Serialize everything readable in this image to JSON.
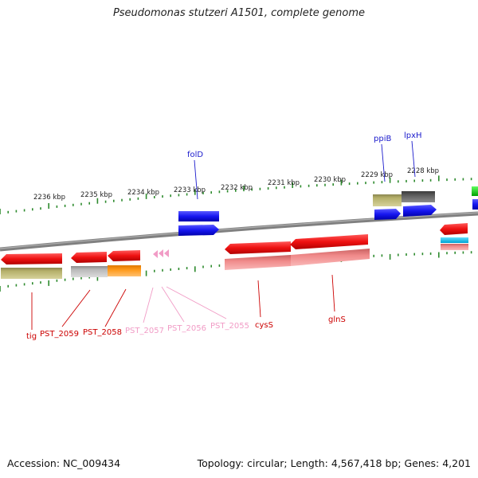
{
  "title": "Pseudomonas stutzeri A1501, complete genome",
  "footer": {
    "accession": "Accession: NC_009434",
    "summary": "Topology: circular; Length: 4,567,418 bp; Genes: 4,201"
  },
  "ruler_labels": [
    "2236 kbp",
    "2235 kbp",
    "2234 kbp",
    "2233 kbp",
    "2232 kbp",
    "2231 kbp",
    "2230 kbp",
    "2229 kbp",
    "2228 kbp"
  ],
  "gene_labels": [
    {
      "text": "tig",
      "color": "#cc0000"
    },
    {
      "text": "PST_2059",
      "color": "#cc0000"
    },
    {
      "text": "PST_2058",
      "color": "#cc0000"
    },
    {
      "text": "PST_2057",
      "color": "#f19cc6"
    },
    {
      "text": "PST_2056",
      "color": "#f19cc6"
    },
    {
      "text": "PST_2055",
      "color": "#f19cc6"
    },
    {
      "text": "cysS",
      "color": "#cc0000"
    },
    {
      "text": "glnS",
      "color": "#cc0000"
    },
    {
      "text": "folD",
      "color": "#1a1acc"
    },
    {
      "text": "ppiB",
      "color": "#1a1acc"
    },
    {
      "text": "lpxH",
      "color": "#1a1acc"
    }
  ],
  "colors": {
    "backbone": "#808080",
    "tick": "#2d8a2d",
    "red_gene": "#ee1111",
    "blue_gene": "#1616f0",
    "olive_feature": "#b5b06a",
    "gray_feature": "#b8b8b8",
    "orange_feature": "#ff9a1a",
    "pink_feature": "#f08a8a",
    "trna": "#f19cc6"
  }
}
